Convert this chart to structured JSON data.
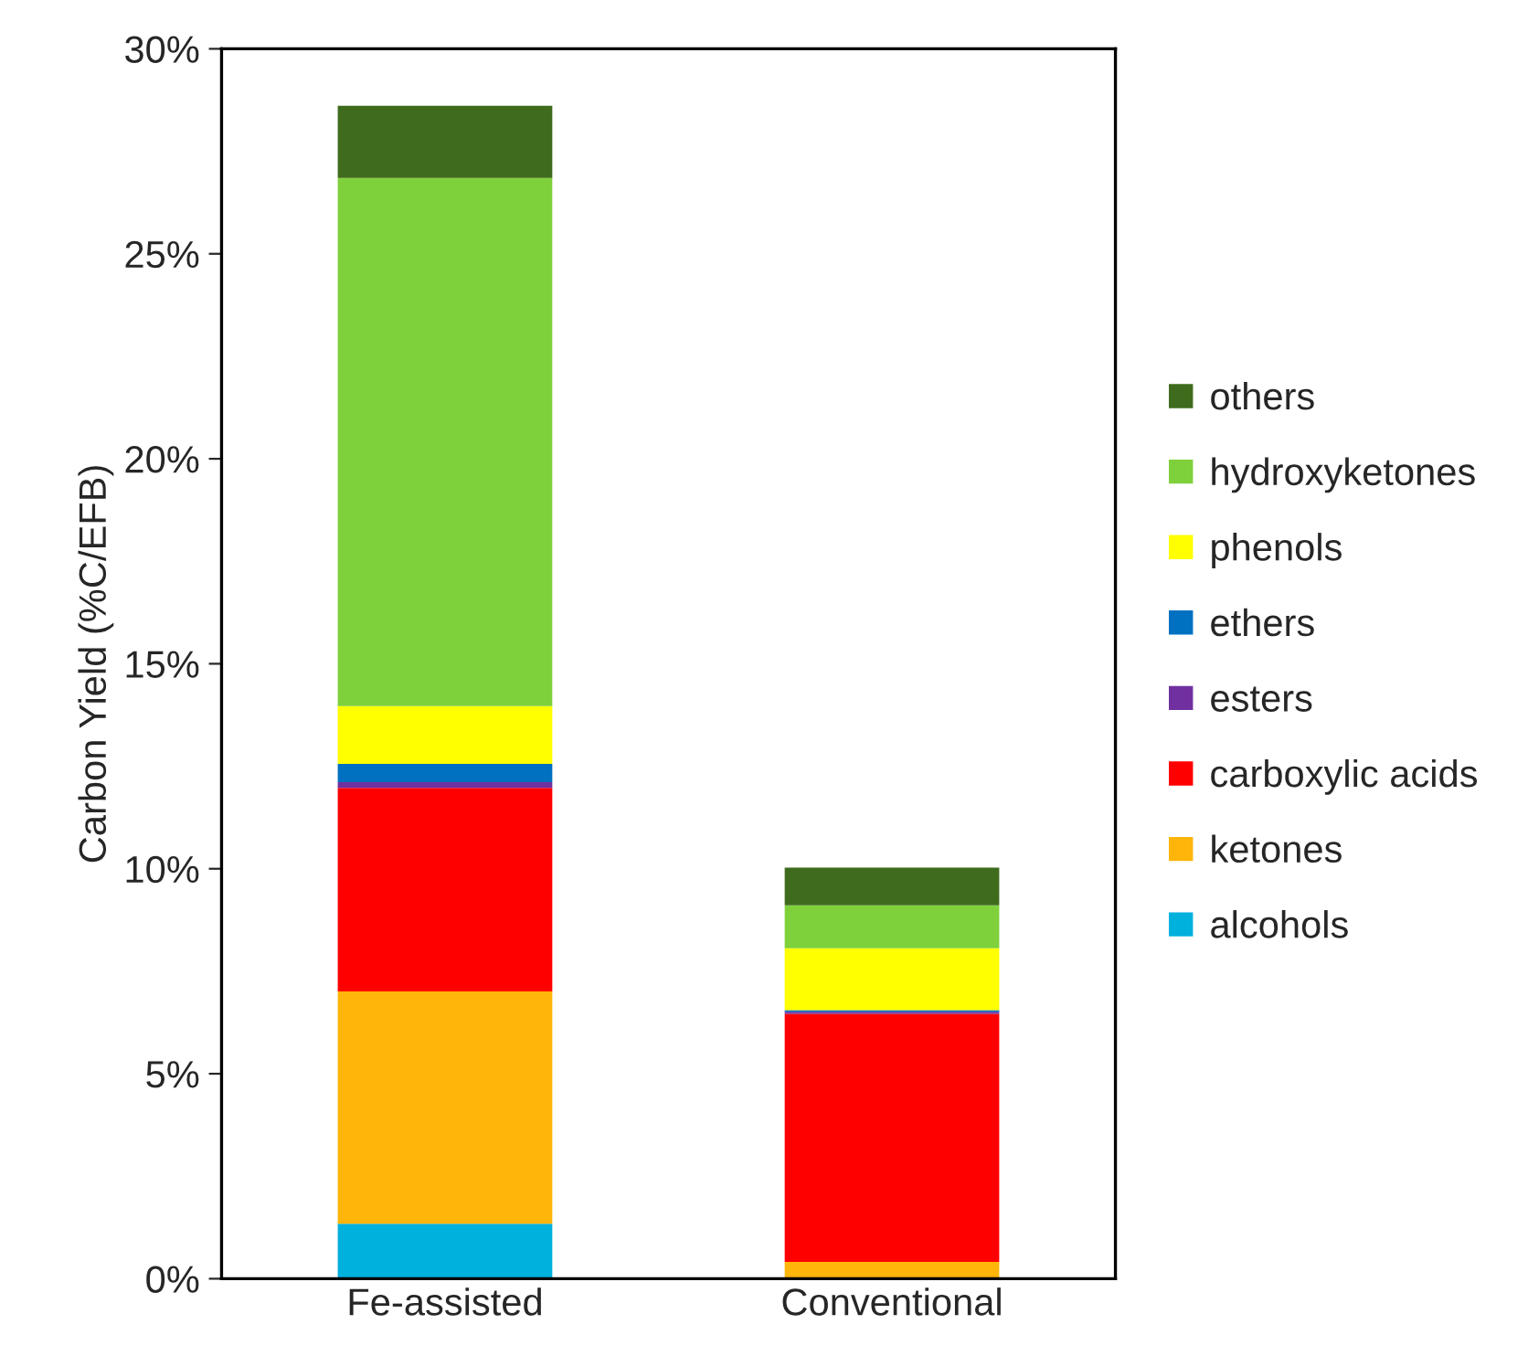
{
  "chart_data": {
    "type": "bar",
    "stacked": true,
    "ylabel": "Carbon Yield (%C/EFB)",
    "categories": [
      "Fe-assisted",
      "Conventional"
    ],
    "series": [
      {
        "name": "alcohols",
        "color": "#00b0dd",
        "values": [
          1.34,
          0
        ]
      },
      {
        "name": "ketones",
        "color": "#ffb50a",
        "values": [
          5.67,
          0.41
        ]
      },
      {
        "name": "carboxylic acids",
        "color": "#ff0000",
        "values": [
          4.96,
          6.05
        ]
      },
      {
        "name": "esters",
        "color": "#7030a0",
        "values": [
          0.14,
          0.05
        ]
      },
      {
        "name": "ethers",
        "color": "#0070c0",
        "values": [
          0.45,
          0.04
        ]
      },
      {
        "name": "phenols",
        "color": "#ffff00",
        "values": [
          1.41,
          1.51
        ]
      },
      {
        "name": "hydroxyketones",
        "color": "#7fd13b",
        "values": [
          12.88,
          1.05
        ]
      },
      {
        "name": "others",
        "color": "#3f6b1c",
        "values": [
          1.76,
          0.92
        ]
      }
    ],
    "ylim": [
      0,
      30
    ],
    "yticks": [
      {
        "value": 0,
        "label": "0%"
      },
      {
        "value": 5,
        "label": "5%"
      },
      {
        "value": 10,
        "label": "10%"
      },
      {
        "value": 15,
        "label": "15%"
      },
      {
        "value": 20,
        "label": "20%"
      },
      {
        "value": 25,
        "label": "25%"
      },
      {
        "value": 30,
        "label": "30%"
      }
    ],
    "legend": "right",
    "grid": false
  }
}
